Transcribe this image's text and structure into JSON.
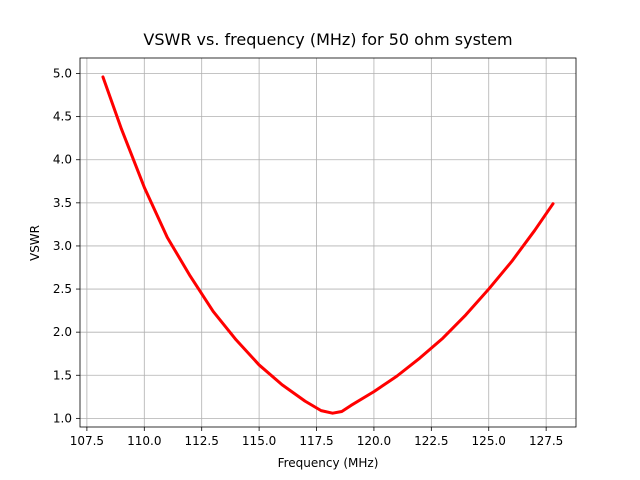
{
  "chart_data": {
    "type": "line",
    "title": "VSWR vs. frequency (MHz) for 50 ohm system",
    "xlabel": "Frequency (MHz)",
    "ylabel": "VSWR",
    "xlim": [
      107.2,
      128.8
    ],
    "ylim": [
      0.9,
      5.18
    ],
    "xticks": [
      107.5,
      110.0,
      112.5,
      115.0,
      117.5,
      120.0,
      122.5,
      125.0,
      127.5
    ],
    "xtick_labels": [
      "107.5",
      "110.0",
      "112.5",
      "115.0",
      "117.5",
      "120.0",
      "122.5",
      "125.0",
      "127.5"
    ],
    "yticks": [
      1.0,
      1.5,
      2.0,
      2.5,
      3.0,
      3.5,
      4.0,
      4.5,
      5.0
    ],
    "ytick_labels": [
      "1.0",
      "1.5",
      "2.0",
      "2.5",
      "3.0",
      "3.5",
      "4.0",
      "4.5",
      "5.0"
    ],
    "grid": true,
    "series": [
      {
        "color": "#ff0000",
        "x": [
          108.2,
          109.0,
          110.0,
          111.0,
          112.0,
          113.0,
          114.0,
          115.0,
          116.0,
          117.0,
          117.7,
          118.2,
          118.6,
          119.0,
          120.0,
          121.0,
          122.0,
          123.0,
          124.0,
          125.0,
          126.0,
          127.0,
          127.8
        ],
        "y": [
          4.96,
          4.36,
          3.68,
          3.1,
          2.65,
          2.24,
          1.91,
          1.62,
          1.39,
          1.2,
          1.09,
          1.06,
          1.08,
          1.15,
          1.31,
          1.49,
          1.7,
          1.93,
          2.2,
          2.5,
          2.82,
          3.18,
          3.49
        ]
      }
    ]
  }
}
